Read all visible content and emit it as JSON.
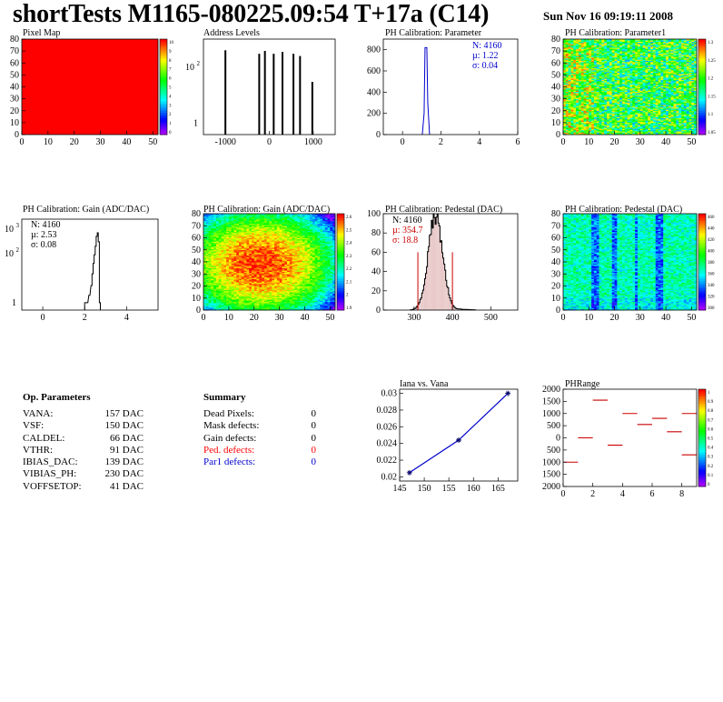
{
  "header": {
    "title": "shortTests M1165-080225.09:54 T+17a (C14)",
    "date": "Sun Nov 16 09:19:11 2008"
  },
  "colors": {
    "red": "#ff0000",
    "blue": "#0000cc",
    "black": "#000000",
    "hist_fill": "#cc9999"
  },
  "chart_data": [
    {
      "id": "pixel-map",
      "type": "heatmap",
      "title": "Pixel Map",
      "xlim": [
        0,
        52
      ],
      "ylim": [
        0,
        80
      ],
      "xticks": [
        "0",
        "10",
        "20",
        "30",
        "40",
        "50"
      ],
      "yticks": [
        "0",
        "10",
        "20",
        "30",
        "40",
        "50",
        "60",
        "70",
        "80"
      ],
      "fill": "uniform-max",
      "palette_ticks": [
        "10",
        "9",
        "8",
        "7",
        "6",
        "5",
        "4",
        "3",
        "2",
        "1",
        "0"
      ]
    },
    {
      "id": "address-levels",
      "type": "bar",
      "title": "Address Levels",
      "yscale": "log",
      "xlim": [
        -1500,
        1500
      ],
      "xticks": [
        "-1000",
        "0",
        "1000"
      ],
      "yticks": [
        {
          "label": "1",
          "exp": ""
        },
        {
          "label": "10",
          "exp": "2"
        }
      ],
      "x": [
        -1000,
        -230,
        -100,
        100,
        300,
        550,
        700,
        980
      ],
      "values": [
        400,
        300,
        380,
        300,
        350,
        300,
        250,
        30
      ]
    },
    {
      "id": "ph-parameter",
      "type": "bar",
      "title": "PH Calibration: Parameter",
      "xlim": [
        -1,
        6
      ],
      "ylim": [
        0,
        900
      ],
      "xticks": [
        "0",
        "2",
        "4",
        "6"
      ],
      "yticks": [
        "0",
        "200",
        "400",
        "600",
        "800"
      ],
      "stats": [
        "N: 4160",
        "µ: 1.22",
        "σ: 0.04"
      ],
      "stats_color": "blue",
      "peak_x": 1.22,
      "peak_y": 820,
      "width": 0.04
    },
    {
      "id": "ph-parameter1",
      "type": "heatmap",
      "title": "PH Calibration: Parameter1",
      "xlim": [
        0,
        52
      ],
      "ylim": [
        0,
        80
      ],
      "xticks": [
        "0",
        "10",
        "20",
        "30",
        "40",
        "50"
      ],
      "yticks": [
        "0",
        "10",
        "20",
        "30",
        "40",
        "50",
        "60",
        "70",
        "80"
      ],
      "palette_ticks": [
        "1.3",
        "1.25",
        "1.2",
        "1.15",
        "1.1",
        "1.05"
      ]
    },
    {
      "id": "ph-gain-hist",
      "type": "bar",
      "title": "PH Calibration: Gain (ADC/DAC)",
      "yscale": "log",
      "xlim": [
        -1,
        5.5
      ],
      "xticks": [
        "0",
        "2",
        "4"
      ],
      "yticks": [
        {
          "label": "1",
          "exp": ""
        },
        {
          "label": "10",
          "exp": "2"
        },
        {
          "label": "10",
          "exp": "3"
        }
      ],
      "stats": [
        "N: 4160",
        "µ: 2.53",
        "σ: 0.08"
      ],
      "stats_color": "black",
      "peak_x": 2.53,
      "peak_y": 700
    },
    {
      "id": "ph-gain-map",
      "type": "heatmap",
      "title": "PH Calibration: Gain (ADC/DAC)",
      "xlim": [
        0,
        52
      ],
      "ylim": [
        0,
        80
      ],
      "xticks": [
        "0",
        "10",
        "20",
        "30",
        "40",
        "50"
      ],
      "yticks": [
        "0",
        "10",
        "20",
        "30",
        "40",
        "50",
        "60",
        "70",
        "80"
      ],
      "palette_ticks": [
        "2.6",
        "2.5",
        "2.4",
        "2.3",
        "2.2",
        "2.1",
        "2",
        "1.9"
      ]
    },
    {
      "id": "ph-pedestal-hist",
      "type": "bar",
      "title": "PH Calibration: Pedestal (DAC)",
      "xlim": [
        220,
        570
      ],
      "ylim": [
        0,
        100
      ],
      "xticks": [
        "300",
        "400",
        "500"
      ],
      "yticks": [
        "0",
        "20",
        "40",
        "60",
        "80",
        "100"
      ],
      "stats": [
        "N: 4160",
        "µ: 354.7",
        "σ: 18.8"
      ],
      "stats_color": "red",
      "mean": 354.7,
      "sigma": 18.8,
      "peak": 97,
      "cut_lines": [
        310,
        400
      ]
    },
    {
      "id": "ph-pedestal-map",
      "type": "heatmap",
      "title": "PH Calibration: Pedestal (DAC)",
      "xlim": [
        0,
        52
      ],
      "ylim": [
        0,
        80
      ],
      "xticks": [
        "0",
        "10",
        "20",
        "30",
        "40",
        "50"
      ],
      "yticks": [
        "0",
        "10",
        "20",
        "30",
        "40",
        "50",
        "60",
        "70",
        "80"
      ],
      "palette_ticks": [
        "460",
        "440",
        "420",
        "400",
        "380",
        "360",
        "340",
        "320",
        "300"
      ]
    },
    {
      "id": "iana-vana",
      "type": "line",
      "title": "Iana vs. Vana",
      "xlim": [
        145,
        169
      ],
      "ylim": [
        0.0195,
        0.0305
      ],
      "xticks": [
        "145",
        "150",
        "155",
        "160",
        "165"
      ],
      "yticks": [
        "0.02",
        "0.022",
        "0.024",
        "0.026",
        "0.028",
        "0.03"
      ],
      "x": [
        147,
        157,
        167
      ],
      "y": [
        0.0205,
        0.0244,
        0.03
      ]
    },
    {
      "id": "phrange",
      "type": "scatter",
      "title": "PHRange",
      "xlim": [
        0,
        9
      ],
      "ylim": [
        -2000,
        2000
      ],
      "xticks": [
        "0",
        "2",
        "4",
        "6",
        "8"
      ],
      "yticks": [
        "2000",
        "1500",
        "1000",
        "500",
        "0",
        "500",
        "1000",
        "1500",
        "2000"
      ],
      "palette_ticks": [
        "1",
        "0.9",
        "0.8",
        "0.7",
        "0.6",
        "0.5",
        "0.4",
        "0.3",
        "0.2",
        "0.1",
        "0"
      ],
      "segments": [
        [
          0,
          1,
          -1000
        ],
        [
          1,
          2,
          0
        ],
        [
          2,
          3,
          1550
        ],
        [
          3,
          4,
          -300
        ],
        [
          4,
          5,
          1000
        ],
        [
          5,
          6,
          550
        ],
        [
          6,
          7,
          800
        ],
        [
          7,
          8,
          250
        ],
        [
          8,
          9,
          1000
        ],
        [
          8,
          9,
          -700
        ]
      ]
    }
  ],
  "op_params": {
    "title": "Op. Parameters",
    "rows": [
      {
        "key": "VANA:",
        "value": "157 DAC"
      },
      {
        "key": "VSF:",
        "value": "150 DAC"
      },
      {
        "key": "CALDEL:",
        "value": "66 DAC"
      },
      {
        "key": "VTHR:",
        "value": "91 DAC"
      },
      {
        "key": "IBIAS_DAC:",
        "value": "139 DAC"
      },
      {
        "key": "VIBIAS_PH:",
        "value": "230 DAC"
      },
      {
        "key": "VOFFSETOP:",
        "value": "41 DAC"
      }
    ]
  },
  "summary": {
    "title": "Summary",
    "rows": [
      {
        "key": "Dead Pixels:",
        "value": "0",
        "color": "#000000"
      },
      {
        "key": "Mask defects:",
        "value": "0",
        "color": "#000000"
      },
      {
        "key": "Gain defects:",
        "value": "0",
        "color": "#000000"
      },
      {
        "key": "Ped. defects:",
        "value": "0",
        "color": "#ff0000"
      },
      {
        "key": "Par1 defects:",
        "value": "0",
        "color": "#0000cc"
      }
    ]
  }
}
